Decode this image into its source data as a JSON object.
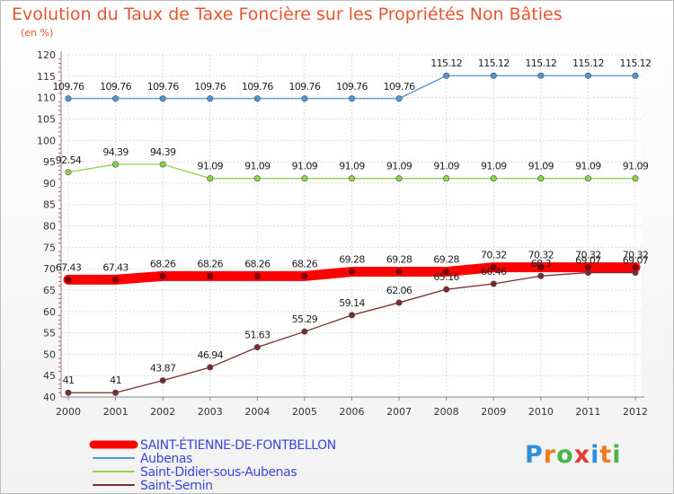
{
  "chart_data": {
    "type": "line",
    "title": "Evolution du Taux de Taxe Foncière sur les Propriétés Non Bâties",
    "ylabel": "(en %)",
    "xlabel": "",
    "ylim": [
      40,
      120
    ],
    "ystep": 5,
    "grid": true,
    "legend_position": "bottom-left",
    "categories": [
      "2000",
      "2001",
      "2002",
      "2003",
      "2004",
      "2005",
      "2006",
      "2007",
      "2008",
      "2009",
      "2010",
      "2011",
      "2012"
    ],
    "series": [
      {
        "name": "SAINT-ÉTIENNE-DE-FONTBELLON",
        "color": "#ff0000",
        "style": "thick",
        "values": [
          67.43,
          67.43,
          68.26,
          68.26,
          68.26,
          68.26,
          69.28,
          69.28,
          69.28,
          70.32,
          70.32,
          70.32,
          70.32
        ],
        "labels": [
          "67.43",
          "67.43",
          "68.26",
          "68.26",
          "68.26",
          "68.26",
          "69.28",
          "69.28",
          "69.28",
          "70.32",
          "70.32",
          "70.32",
          "70.32"
        ]
      },
      {
        "name": "Aubenas",
        "color": "#4f97d6",
        "style": "thin",
        "values": [
          109.76,
          109.76,
          109.76,
          109.76,
          109.76,
          109.76,
          109.76,
          109.76,
          115.12,
          115.12,
          115.12,
          115.12,
          115.12
        ],
        "labels": [
          "109.76",
          "109.76",
          "109.76",
          "109.76",
          "109.76",
          "109.76",
          "109.76",
          "109.76",
          "115.12",
          "115.12",
          "115.12",
          "115.12",
          "115.12"
        ]
      },
      {
        "name": "Saint-Didier-sous-Aubenas",
        "color": "#8fd24b",
        "style": "thin",
        "values": [
          92.54,
          94.39,
          94.39,
          91.09,
          91.09,
          91.09,
          91.09,
          91.09,
          91.09,
          91.09,
          91.09,
          91.09,
          91.09
        ],
        "labels": [
          "92.54",
          "94.39",
          "94.39",
          "91.09",
          "91.09",
          "91.09",
          "91.09",
          "91.09",
          "91.09",
          "91.09",
          "91.09",
          "91.09",
          "91.09"
        ]
      },
      {
        "name": "Saint-Sernin",
        "color": "#7a2c2c",
        "style": "thin",
        "values": [
          41,
          41,
          43.87,
          46.94,
          51.63,
          55.29,
          59.14,
          62.06,
          65.16,
          66.46,
          68.3,
          69.07,
          69.07
        ],
        "labels": [
          "41",
          "41",
          "43.87",
          "46.94",
          "51.63",
          "55.29",
          "59.14",
          "62.06",
          "65.16",
          "66.46",
          "68.3",
          "69.07",
          "69.07"
        ]
      }
    ]
  },
  "logo": {
    "text": "Proxiti",
    "letter_colors": [
      "#2f8fd8",
      "#f07c1e",
      "#4ab54a",
      "#e53935",
      "#2f8fd8",
      "#f07c1e",
      "#4ab54a"
    ]
  }
}
